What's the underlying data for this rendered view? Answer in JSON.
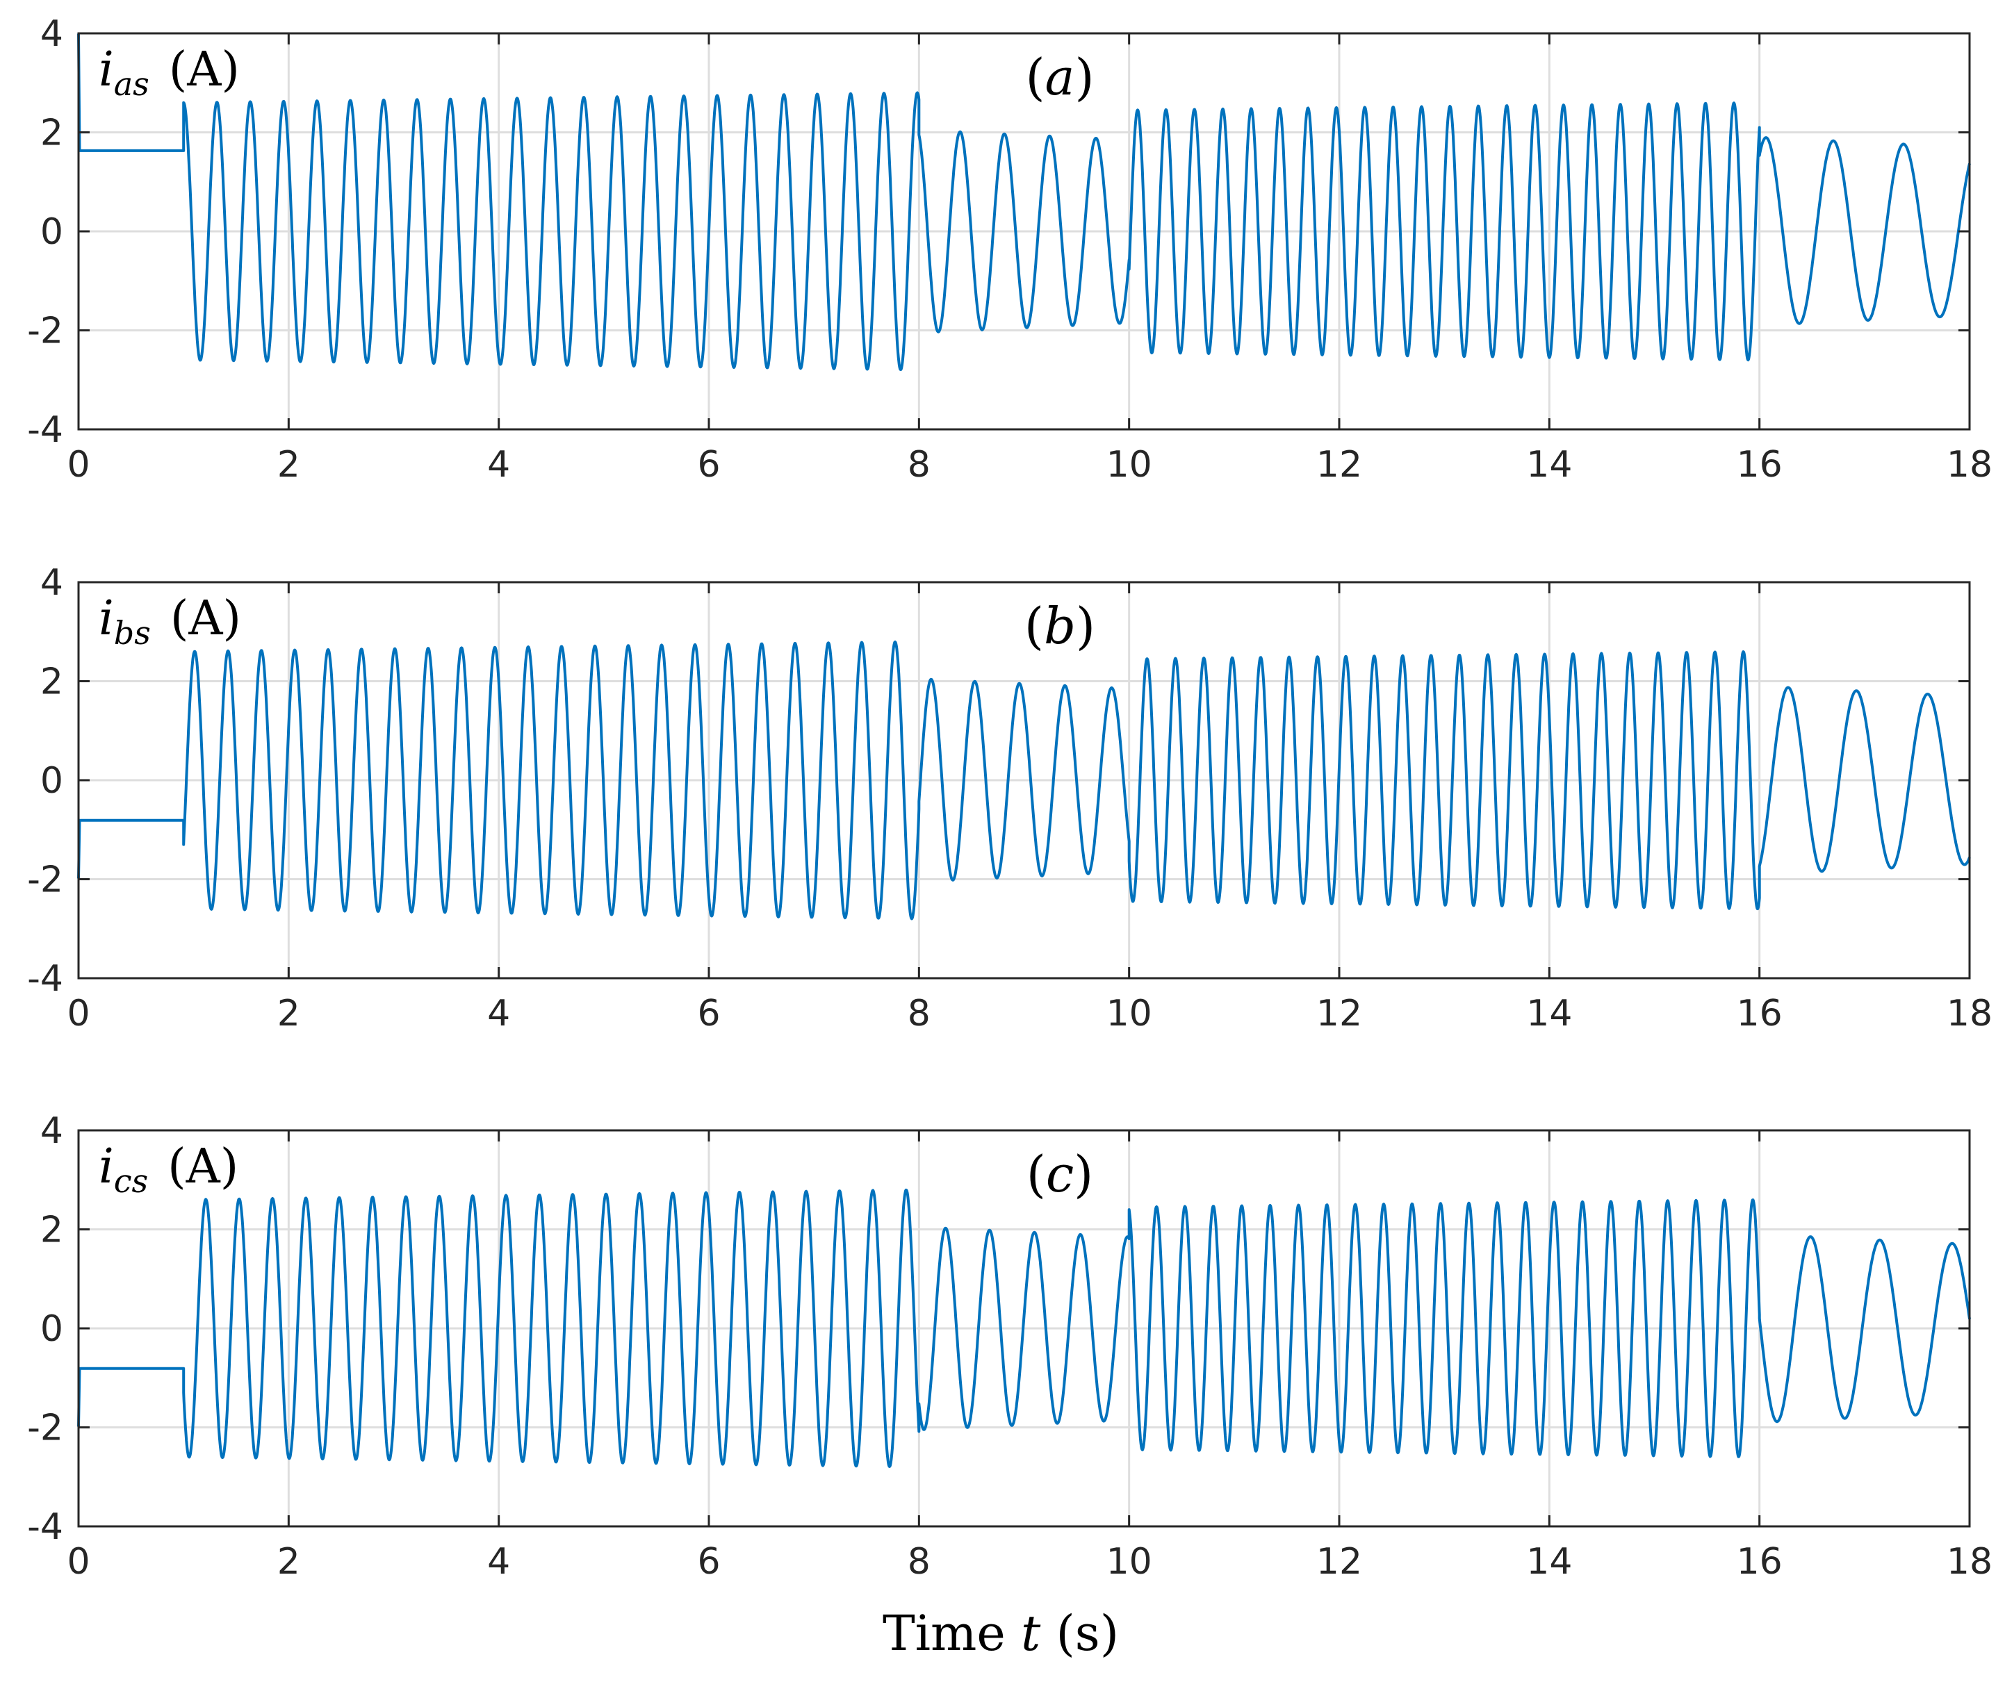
{
  "chart_data": [
    {
      "type": "line",
      "panel_label": "(a)",
      "ylabel_var": "i",
      "ylabel_sub": "as",
      "ylabel_unit": "(A)",
      "xlim": [
        0,
        18
      ],
      "ylim": [
        -4,
        4
      ],
      "xticks": [
        "0",
        "2",
        "4",
        "6",
        "8",
        "10",
        "12",
        "14",
        "16",
        "18"
      ],
      "yticks": [
        "-4",
        "-2",
        "0",
        "2",
        "4"
      ],
      "grid": true,
      "color": "#0072bd",
      "phase_deg": 90,
      "dc_level": 1.63,
      "series": [
        {
          "segments": [
            {
              "t0": 1.0,
              "t1": 8.0,
              "f0": 3.15,
              "f1": 3.15,
              "a0": 2.6,
              "a1": 2.8
            },
            {
              "t0": 8.0,
              "t1": 10.0,
              "f0": 2.45,
              "f1": 2.2,
              "a0": 2.05,
              "a1": 1.85
            },
            {
              "t0": 10.0,
              "t1": 16.0,
              "f0": 3.7,
              "f1": 3.7,
              "a0": 2.45,
              "a1": 2.6
            },
            {
              "t0": 16.0,
              "t1": 18.0,
              "f0": 1.6,
              "f1": 1.4,
              "a0": 1.9,
              "a1": 1.7
            }
          ]
        }
      ]
    },
    {
      "type": "line",
      "panel_label": "(b)",
      "ylabel_var": "i",
      "ylabel_sub": "bs",
      "ylabel_unit": "(A)",
      "xlim": [
        0,
        18
      ],
      "ylim": [
        -4,
        4
      ],
      "xticks": [
        "0",
        "2",
        "4",
        "6",
        "8",
        "10",
        "12",
        "14",
        "16",
        "18"
      ],
      "yticks": [
        "-4",
        "-2",
        "0",
        "2",
        "4"
      ],
      "grid": true,
      "color": "#0072bd",
      "phase_deg": -30,
      "dc_level": -0.81,
      "series": [
        {
          "segments": [
            {
              "t0": 1.0,
              "t1": 8.0,
              "f0": 3.15,
              "f1": 3.15,
              "a0": 2.6,
              "a1": 2.8
            },
            {
              "t0": 8.0,
              "t1": 10.0,
              "f0": 2.45,
              "f1": 2.2,
              "a0": 2.05,
              "a1": 1.85
            },
            {
              "t0": 10.0,
              "t1": 16.0,
              "f0": 3.7,
              "f1": 3.7,
              "a0": 2.45,
              "a1": 2.6
            },
            {
              "t0": 16.0,
              "t1": 18.0,
              "f0": 1.6,
              "f1": 1.4,
              "a0": 1.9,
              "a1": 1.7
            }
          ]
        }
      ]
    },
    {
      "type": "line",
      "panel_label": "(c)",
      "ylabel_var": "i",
      "ylabel_sub": "cs",
      "ylabel_unit": "(A)",
      "xlim": [
        0,
        18
      ],
      "ylim": [
        -4,
        4
      ],
      "xticks": [
        "0",
        "2",
        "4",
        "6",
        "8",
        "10",
        "12",
        "14",
        "16",
        "18"
      ],
      "yticks": [
        "-4",
        "-2",
        "0",
        "2",
        "4"
      ],
      "grid": true,
      "color": "#0072bd",
      "phase_deg": 210,
      "dc_level": -0.81,
      "series": [
        {
          "segments": [
            {
              "t0": 1.0,
              "t1": 8.0,
              "f0": 3.15,
              "f1": 3.15,
              "a0": 2.6,
              "a1": 2.8
            },
            {
              "t0": 8.0,
              "t1": 10.0,
              "f0": 2.45,
              "f1": 2.2,
              "a0": 2.05,
              "a1": 1.85
            },
            {
              "t0": 10.0,
              "t1": 16.0,
              "f0": 3.7,
              "f1": 3.7,
              "a0": 2.45,
              "a1": 2.6
            },
            {
              "t0": 16.0,
              "t1": 18.0,
              "f0": 1.6,
              "f1": 1.4,
              "a0": 1.9,
              "a1": 1.7
            }
          ]
        }
      ]
    }
  ],
  "xlabel_prefix": "Time ",
  "xlabel_var": "t",
  "xlabel_unit": " (s)"
}
